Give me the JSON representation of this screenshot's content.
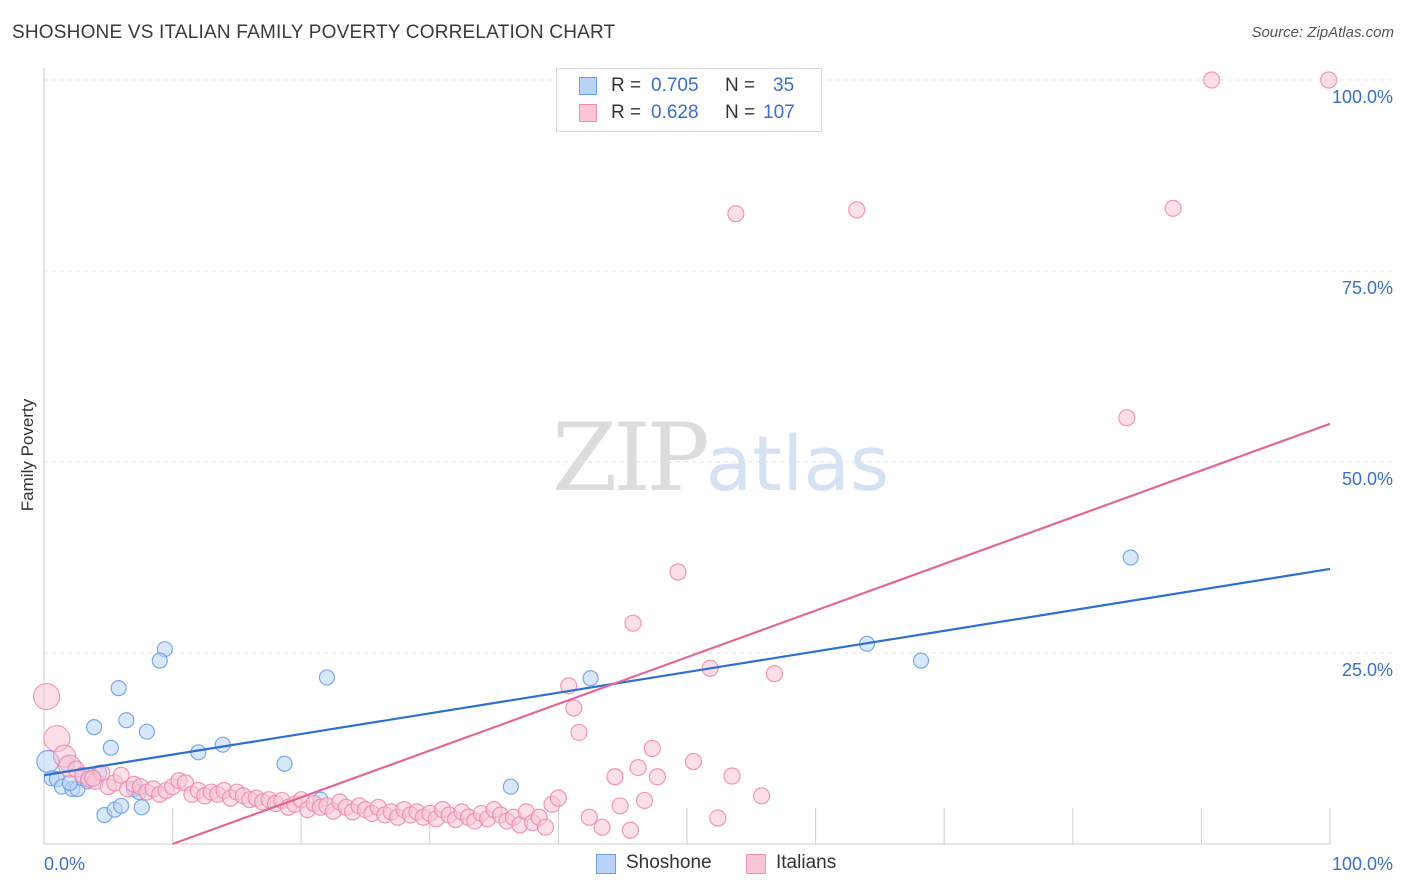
{
  "header": {
    "title": "SHOSHONE VS ITALIAN FAMILY POVERTY CORRELATION CHART",
    "source": "Source: ZipAtlas.com"
  },
  "watermark": {
    "zip": "ZIP",
    "atlas": "atlas"
  },
  "stats": [
    {
      "r_label": "R =",
      "r_value": "0.705",
      "n_label": "N =",
      "n_value": "35",
      "color": "#6aa0e8",
      "fill": "#b8d3f5"
    },
    {
      "r_label": "R =",
      "r_value": "0.628",
      "n_label": "N =",
      "n_value": "107",
      "color": "#f08cad",
      "fill": "#fac5d5"
    }
  ],
  "legend": [
    {
      "label": "Shoshone",
      "color": "#6aa0e8",
      "fill": "#b8d3f5"
    },
    {
      "label": "Italians",
      "color": "#f08cad",
      "fill": "#fac5d5"
    }
  ],
  "chart_data": {
    "type": "scatter",
    "title": "SHOSHONE VS ITALIAN FAMILY POVERTY CORRELATION CHART",
    "xlabel": "",
    "ylabel": "Family Poverty",
    "xlim": [
      0,
      100
    ],
    "ylim": [
      0,
      100
    ],
    "x_tick_labels": [
      {
        "value": 0,
        "label": "0.0%"
      },
      {
        "value": 100,
        "label": "100.0%"
      }
    ],
    "y_tick_labels": [
      {
        "value": 25,
        "label": "25.0%"
      },
      {
        "value": 50,
        "label": "50.0%"
      },
      {
        "value": 75,
        "label": "75.0%"
      },
      {
        "value": 100,
        "label": "100.0%"
      }
    ],
    "grid": true,
    "legend_position": "bottom-center",
    "series": [
      {
        "name": "Shoshone",
        "color": "#6aa0e8",
        "fill": "#b8d3f5",
        "trend_color": "#2e6fd0",
        "trend": {
          "x": [
            0,
            100
          ],
          "y": [
            9.0,
            36.0
          ]
        },
        "points": [
          [
            0.3,
            10.8
          ],
          [
            0.6,
            8.6
          ],
          [
            1.0,
            8.5
          ],
          [
            1.4,
            7.5
          ],
          [
            1.8,
            10.5
          ],
          [
            2.2,
            7.2
          ],
          [
            2.6,
            7.2
          ],
          [
            3.0,
            8.6
          ],
          [
            3.4,
            8.2
          ],
          [
            3.6,
            9.0
          ],
          [
            3.9,
            15.3
          ],
          [
            4.3,
            9.3
          ],
          [
            4.7,
            3.8
          ],
          [
            5.2,
            12.6
          ],
          [
            5.8,
            20.4
          ],
          [
            6.4,
            16.2
          ],
          [
            7.0,
            7.2
          ],
          [
            7.4,
            6.8
          ],
          [
            7.6,
            4.8
          ],
          [
            8.0,
            14.7
          ],
          [
            9.4,
            25.5
          ],
          [
            12.0,
            12.0
          ],
          [
            13.9,
            13.0
          ],
          [
            18.7,
            10.5
          ],
          [
            22.0,
            21.8
          ],
          [
            21.5,
            5.8
          ],
          [
            36.3,
            7.5
          ],
          [
            42.5,
            21.7
          ],
          [
            64.0,
            26.2
          ],
          [
            68.2,
            24.0
          ],
          [
            84.5,
            37.5
          ],
          [
            5.5,
            4.5
          ],
          [
            2.0,
            8.0
          ],
          [
            6.0,
            5.0
          ],
          [
            9.0,
            24.0
          ]
        ]
      },
      {
        "name": "Italians",
        "color": "#f08cad",
        "fill": "#fac5d5",
        "trend_color": "#e2669a",
        "trend": {
          "x": [
            10,
            100
          ],
          "y": [
            0.0,
            55.0
          ]
        },
        "points": [
          [
            0.2,
            19.3
          ],
          [
            1.0,
            13.8
          ],
          [
            1.6,
            11.5
          ],
          [
            2.0,
            10.2
          ],
          [
            2.5,
            9.8
          ],
          [
            3.0,
            9.0
          ],
          [
            3.5,
            8.5
          ],
          [
            4.0,
            8.2
          ],
          [
            4.5,
            9.3
          ],
          [
            5.0,
            7.5
          ],
          [
            5.5,
            8.0
          ],
          [
            6.0,
            9.0
          ],
          [
            6.5,
            7.2
          ],
          [
            7.0,
            7.8
          ],
          [
            7.5,
            7.5
          ],
          [
            8.0,
            6.8
          ],
          [
            8.5,
            7.2
          ],
          [
            9.0,
            6.5
          ],
          [
            9.5,
            7.0
          ],
          [
            10.0,
            7.5
          ],
          [
            10.5,
            8.3
          ],
          [
            11.0,
            8.0
          ],
          [
            11.5,
            6.5
          ],
          [
            12.0,
            7.0
          ],
          [
            12.5,
            6.3
          ],
          [
            13.0,
            6.8
          ],
          [
            13.5,
            6.5
          ],
          [
            14.0,
            7.0
          ],
          [
            14.5,
            6.0
          ],
          [
            15.0,
            6.8
          ],
          [
            15.5,
            6.3
          ],
          [
            16.0,
            5.8
          ],
          [
            16.5,
            6.0
          ],
          [
            17.0,
            5.5
          ],
          [
            17.5,
            5.8
          ],
          [
            18.0,
            5.3
          ],
          [
            18.5,
            5.7
          ],
          [
            19.0,
            4.8
          ],
          [
            19.5,
            5.2
          ],
          [
            20.0,
            5.8
          ],
          [
            20.5,
            4.5
          ],
          [
            21.0,
            5.3
          ],
          [
            21.5,
            4.8
          ],
          [
            22.0,
            5.0
          ],
          [
            22.5,
            4.3
          ],
          [
            23.0,
            5.5
          ],
          [
            23.5,
            4.8
          ],
          [
            24.0,
            4.2
          ],
          [
            24.5,
            5.0
          ],
          [
            25.0,
            4.5
          ],
          [
            25.5,
            4.0
          ],
          [
            26.0,
            4.8
          ],
          [
            26.5,
            3.8
          ],
          [
            27.0,
            4.2
          ],
          [
            27.5,
            3.5
          ],
          [
            28.0,
            4.5
          ],
          [
            28.5,
            3.8
          ],
          [
            29.0,
            4.2
          ],
          [
            29.5,
            3.5
          ],
          [
            30.0,
            4.0
          ],
          [
            30.5,
            3.3
          ],
          [
            31.0,
            4.5
          ],
          [
            31.5,
            3.8
          ],
          [
            32.0,
            3.2
          ],
          [
            32.5,
            4.2
          ],
          [
            33.0,
            3.5
          ],
          [
            33.5,
            3.0
          ],
          [
            34.0,
            4.0
          ],
          [
            34.5,
            3.3
          ],
          [
            35.0,
            4.5
          ],
          [
            35.5,
            3.8
          ],
          [
            36.0,
            3.0
          ],
          [
            36.5,
            3.5
          ],
          [
            37.0,
            2.5
          ],
          [
            37.5,
            4.2
          ],
          [
            38.0,
            2.8
          ],
          [
            38.5,
            3.5
          ],
          [
            39.0,
            2.2
          ],
          [
            39.5,
            5.2
          ],
          [
            40.0,
            6.0
          ],
          [
            40.8,
            20.7
          ],
          [
            41.2,
            17.8
          ],
          [
            41.6,
            14.6
          ],
          [
            42.4,
            3.5
          ],
          [
            43.4,
            2.2
          ],
          [
            44.4,
            8.8
          ],
          [
            44.8,
            5.0
          ],
          [
            45.6,
            1.8
          ],
          [
            45.8,
            28.9
          ],
          [
            46.2,
            10.0
          ],
          [
            46.7,
            5.7
          ],
          [
            47.3,
            12.5
          ],
          [
            47.7,
            8.8
          ],
          [
            49.3,
            35.6
          ],
          [
            50.5,
            10.8
          ],
          [
            51.8,
            23.0
          ],
          [
            52.4,
            3.4
          ],
          [
            53.5,
            8.9
          ],
          [
            53.8,
            82.5
          ],
          [
            55.8,
            6.3
          ],
          [
            56.8,
            22.3
          ],
          [
            63.2,
            83.0
          ],
          [
            84.2,
            55.8
          ],
          [
            87.8,
            83.2
          ],
          [
            90.8,
            100.0
          ],
          [
            99.9,
            100.0
          ],
          [
            3.8,
            8.6
          ]
        ]
      }
    ]
  }
}
